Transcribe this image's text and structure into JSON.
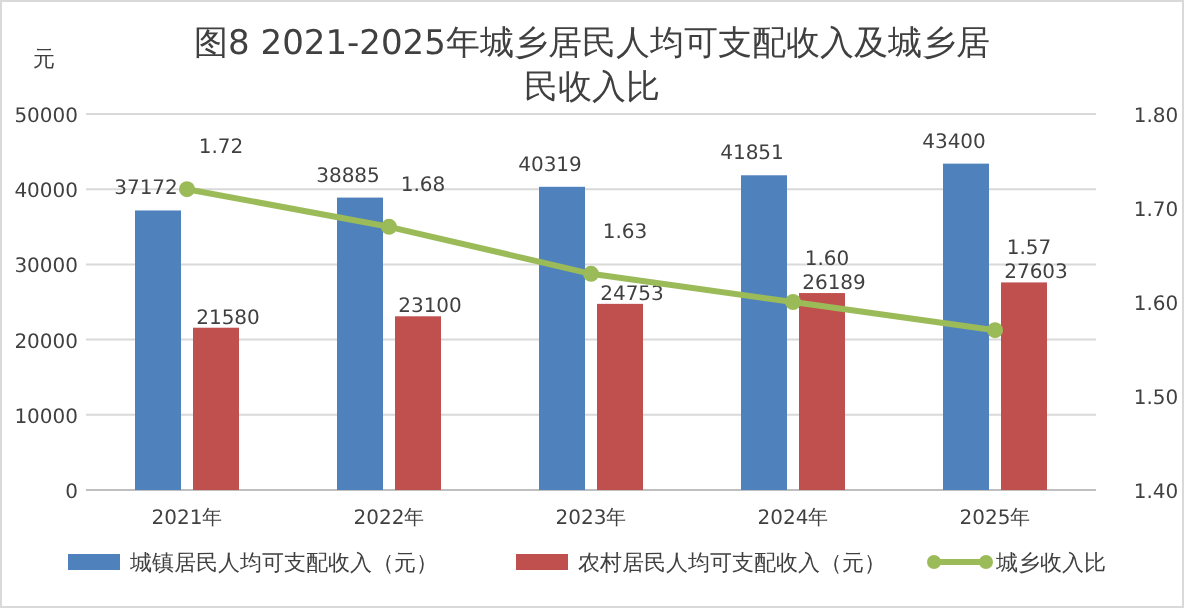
{
  "chart_data": {
    "type": "bar",
    "title": "图8  2021-2025年城乡居民人均可支配收入及城乡居民收入比",
    "ylabel": "元",
    "categories": [
      "2021年",
      "2022年",
      "2023年",
      "2024年",
      "2025年"
    ],
    "series": [
      {
        "name": "城镇居民人均可支配收入（元）",
        "color": "#4f81bd",
        "values": [
          37172,
          38885,
          40319,
          41851,
          43400
        ]
      },
      {
        "name": "农村居民人均可支配收入（元）",
        "color": "#c0504d",
        "values": [
          21580,
          23100,
          24753,
          26189,
          27603
        ]
      },
      {
        "name": "城乡收入比",
        "type": "line",
        "axis": "y2",
        "color": "#9bbb59",
        "values": [
          1.72,
          1.68,
          1.63,
          1.6,
          1.57
        ],
        "value_labels": [
          "1.72",
          "1.68",
          "1.63",
          "1.60",
          "1.57"
        ]
      }
    ],
    "ylim": [
      0,
      50000
    ],
    "yticks": [
      0,
      10000,
      20000,
      30000,
      40000,
      50000
    ],
    "y2lim": [
      1.4,
      1.8
    ],
    "y2ticks": [
      {
        "value": 1.4,
        "label": "1.40"
      },
      {
        "value": 1.5,
        "label": "1.50"
      },
      {
        "value": 1.6,
        "label": "1.60"
      },
      {
        "value": 1.7,
        "label": "1.70"
      },
      {
        "value": 1.8,
        "label": "1.80"
      }
    ],
    "data_labels": true,
    "grid": "y",
    "legend": "bottom",
    "marker": "circle",
    "line_style": "solid"
  }
}
